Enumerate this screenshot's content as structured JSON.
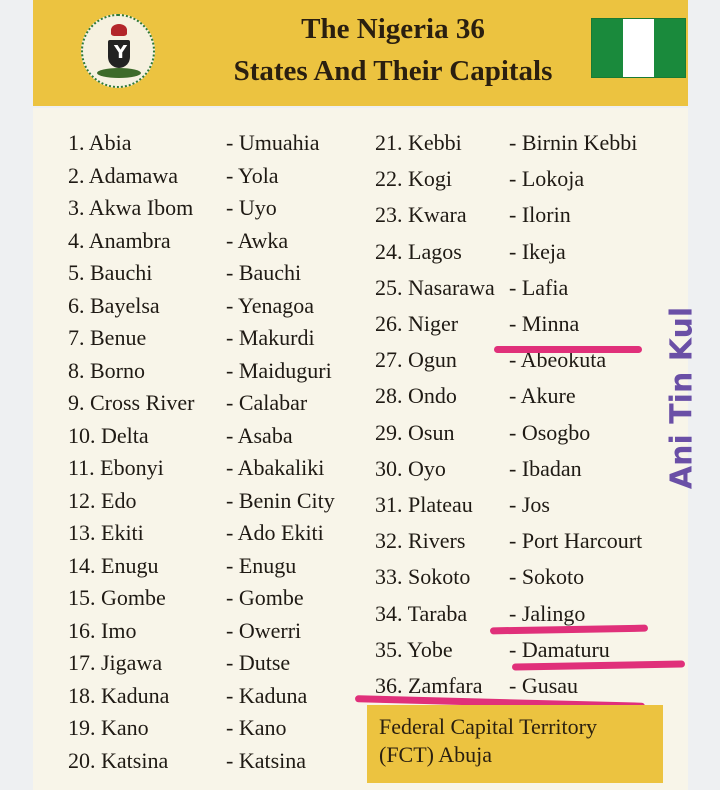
{
  "header": {
    "title_line1": "The Nigeria 36",
    "title_line2": "States And Their Capitals",
    "seal_icon": "nigeria-coat-of-arms",
    "flag_icon": "nigeria-flag",
    "flag_colors": [
      "#1a8a3c",
      "#ffffff",
      "#1a8a3c"
    ]
  },
  "states": [
    {
      "state": "1. Abia",
      "capital": "- Umuahia"
    },
    {
      "state": "2. Adamawa",
      "capital": "- Yola"
    },
    {
      "state": "3. Akwa Ibom",
      "capital": "- Uyo"
    },
    {
      "state": "4. Anambra",
      "capital": "- Awka"
    },
    {
      "state": "5. Bauchi",
      "capital": "- Bauchi"
    },
    {
      "state": "6. Bayelsa",
      "capital": "- Yenagoa"
    },
    {
      "state": "7. Benue",
      "capital": "- Makurdi"
    },
    {
      "state": "8. Borno",
      "capital": "- Maiduguri"
    },
    {
      "state": "9. Cross River",
      "capital": "- Calabar"
    },
    {
      "state": "10. Delta",
      "capital": "- Asaba"
    },
    {
      "state": "11. Ebonyi",
      "capital": "- Abakaliki"
    },
    {
      "state": "12. Edo",
      "capital": "- Benin City"
    },
    {
      "state": "13. Ekiti",
      "capital": "- Ado Ekiti"
    },
    {
      "state": "14. Enugu",
      "capital": "- Enugu"
    },
    {
      "state": "15. Gombe",
      "capital": "- Gombe"
    },
    {
      "state": "16. Imo",
      "capital": "- Owerri"
    },
    {
      "state": "17. Jigawa",
      "capital": "- Dutse"
    },
    {
      "state": "18. Kaduna",
      "capital": "- Kaduna"
    },
    {
      "state": "19. Kano",
      "capital": "- Kano"
    },
    {
      "state": "20. Katsina",
      "capital": "- Katsina"
    },
    {
      "state": "21. Kebbi",
      "capital": "- Birnin Kebbi"
    },
    {
      "state": "22. Kogi",
      "capital": "- Lokoja"
    },
    {
      "state": "23. Kwara",
      "capital": "- Ilorin"
    },
    {
      "state": "24. Lagos",
      "capital": "- Ikeja"
    },
    {
      "state": "25. Nasarawa",
      "capital": "- Lafia"
    },
    {
      "state": "26. Niger",
      "capital": "- Minna"
    },
    {
      "state": "27. Ogun",
      "capital": "- Abeokuta"
    },
    {
      "state": "28. Ondo",
      "capital": "- Akure"
    },
    {
      "state": "29. Osun",
      "capital": "- Osogbo"
    },
    {
      "state": "30. Oyo",
      "capital": "- Ibadan"
    },
    {
      "state": "31. Plateau",
      "capital": "- Jos"
    },
    {
      "state": "32. Rivers",
      "capital": "- Port Harcourt"
    },
    {
      "state": "33. Sokoto",
      "capital": "- Sokoto"
    },
    {
      "state": "34. Taraba",
      "capital": "- Jalingo"
    },
    {
      "state": "35. Yobe",
      "capital": "- Damaturu"
    },
    {
      "state": "36. Zamfara",
      "capital": "- Gusau"
    }
  ],
  "fct": {
    "line1": "Federal Capital Territory",
    "line2": "(FCT) Abuja"
  },
  "watermark": "Ani Tin Kul",
  "colors": {
    "header_bg": "#ecc340",
    "panel_bg": "#f8f5e9",
    "highlight": "#e0307a",
    "watermark": "#6a4fa6"
  }
}
